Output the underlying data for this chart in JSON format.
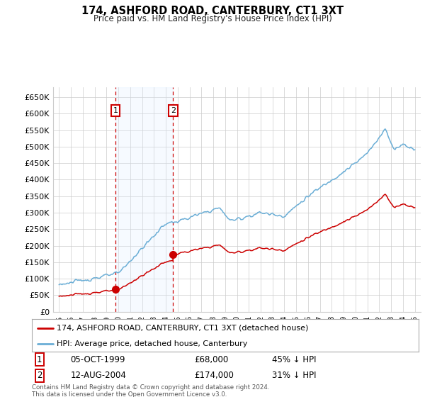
{
  "title": "174, ASHFORD ROAD, CANTERBURY, CT1 3XT",
  "subtitle": "Price paid vs. HM Land Registry's House Price Index (HPI)",
  "ylim": [
    0,
    680000
  ],
  "yticks": [
    0,
    50000,
    100000,
    150000,
    200000,
    250000,
    300000,
    350000,
    400000,
    450000,
    500000,
    550000,
    600000,
    650000
  ],
  "ytick_labels": [
    "£0",
    "£50K",
    "£100K",
    "£150K",
    "£200K",
    "£250K",
    "£300K",
    "£350K",
    "£400K",
    "£450K",
    "£500K",
    "£550K",
    "£600K",
    "£650K"
  ],
  "sale1_date": 1999.76,
  "sale1_price": 68000,
  "sale2_date": 2004.62,
  "sale2_price": 174000,
  "legend_line1": "174, ASHFORD ROAD, CANTERBURY, CT1 3XT (detached house)",
  "legend_line2": "HPI: Average price, detached house, Canterbury",
  "table_row1_num": "1",
  "table_row1_date": "05-OCT-1999",
  "table_row1_price": "£68,000",
  "table_row1_hpi": "45% ↓ HPI",
  "table_row2_num": "2",
  "table_row2_date": "12-AUG-2004",
  "table_row2_price": "£174,000",
  "table_row2_hpi": "31% ↓ HPI",
  "footer": "Contains HM Land Registry data © Crown copyright and database right 2024.\nThis data is licensed under the Open Government Licence v3.0.",
  "hpi_color": "#6baed6",
  "price_color": "#cc0000",
  "vline_color": "#cc0000",
  "shade_color": "#ddeeff",
  "bg_color": "#ffffff",
  "grid_color": "#cccccc",
  "marker_color": "#cc0000",
  "box_color": "#cc0000",
  "xlim_left": 1994.5,
  "xlim_right": 2025.5
}
